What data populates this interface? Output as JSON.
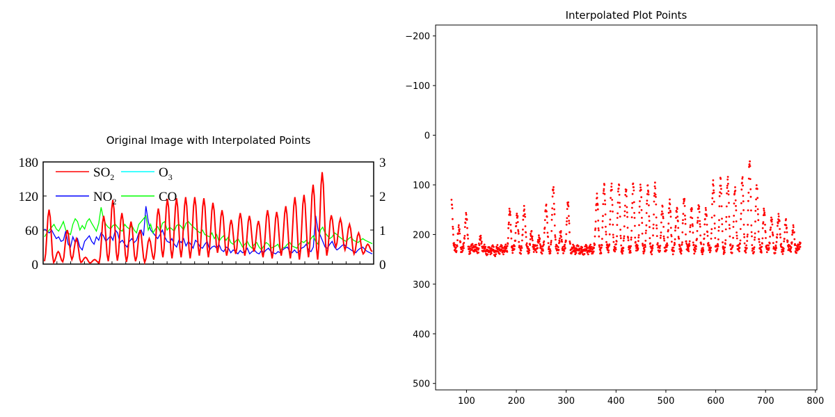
{
  "titles": {
    "left": "Original Image with Interpolated Points",
    "right": "Interpolated Plot Points"
  },
  "colors": {
    "so2": "#ff0000",
    "no2": "#0000ff",
    "o3": "#00ffff",
    "co": "#00ff00",
    "interp": "#ff0000"
  },
  "chart_data": [
    {
      "type": "line",
      "title": "Original Image with Interpolated Points",
      "left_axis": {
        "ylim": [
          0,
          180
        ],
        "ticks": [
          "0",
          "60",
          "120",
          "180"
        ]
      },
      "right_axis": {
        "ylim": [
          0,
          3
        ],
        "ticks": [
          "0",
          "1",
          "2",
          "3"
        ]
      },
      "legend": [
        "SO2",
        "O3",
        "NO2",
        "CO"
      ],
      "legend_placement": "top-left",
      "n_points": 140,
      "series": [
        {
          "name": "SO2",
          "peaks": [
            5,
            96,
            3,
            22,
            4,
            60,
            8,
            45,
            3,
            12,
            2,
            8,
            2,
            85,
            5,
            113,
            6,
            90,
            4,
            75,
            5,
            60,
            3,
            45,
            8,
            98,
            12,
            115,
            10,
            116,
            12,
            118,
            10,
            118,
            15,
            116,
            12,
            108,
            20,
            95,
            15,
            78,
            18,
            90,
            15,
            85,
            22,
            76,
            12,
            95,
            10,
            92,
            15,
            102,
            10,
            118,
            8,
            122,
            12,
            140,
            8,
            162,
            15,
            86,
            30,
            80,
            25,
            70,
            18,
            55,
            18,
            35,
            22
          ]
        },
        {
          "name": "NO2",
          "values": [
            62,
            58,
            55,
            60,
            52,
            45,
            48,
            40,
            42,
            58,
            35,
            30,
            48,
            38,
            45,
            30,
            25,
            40,
            45,
            50,
            40,
            35,
            48,
            42,
            55,
            50,
            40,
            45,
            50,
            42,
            60,
            55,
            38,
            42,
            35,
            30,
            40,
            45,
            38,
            42,
            55,
            60,
            50,
            102,
            75,
            60,
            55,
            50,
            45,
            52,
            60,
            48,
            40,
            38,
            45,
            35,
            30,
            42,
            38,
            45,
            32,
            40,
            35,
            28,
            42,
            38,
            30,
            28,
            35,
            40,
            25,
            30,
            32,
            28,
            35,
            25,
            22,
            30,
            28,
            20,
            25,
            22,
            18,
            24,
            20,
            22,
            28,
            18,
            22,
            25,
            20,
            18,
            24,
            20,
            25,
            28,
            22,
            20,
            18,
            22,
            20,
            25,
            28,
            30,
            22,
            20,
            25,
            20,
            22,
            28,
            30,
            35,
            25,
            22,
            30,
            85,
            60,
            50,
            40,
            30,
            28,
            35,
            40,
            30,
            25,
            28,
            32,
            35,
            30,
            28,
            25,
            22,
            20,
            25,
            28,
            30,
            25,
            22,
            20,
            18
          ]
        },
        {
          "name": "CO",
          "values": [
            48,
            55,
            60,
            65,
            70,
            62,
            58,
            66,
            75,
            60,
            55,
            52,
            70,
            80,
            75,
            60,
            68,
            62,
            75,
            80,
            72,
            65,
            58,
            72,
            100,
            80,
            70,
            65,
            62,
            68,
            70,
            65,
            60,
            58,
            70,
            65,
            62,
            68,
            60,
            55,
            70,
            75,
            80,
            85,
            60,
            70,
            55,
            62,
            66,
            58,
            72,
            75,
            60,
            65,
            62,
            58,
            68,
            70,
            66,
            60,
            72,
            75,
            70,
            66,
            62,
            58,
            55,
            60,
            52,
            50,
            48,
            55,
            45,
            52,
            40,
            46,
            50,
            42,
            48,
            38,
            35,
            40,
            45,
            38,
            30,
            35,
            40,
            32,
            28,
            35,
            38,
            30,
            25,
            32,
            38,
            35,
            28,
            30,
            32,
            35,
            25,
            28,
            30,
            35,
            38,
            32,
            30,
            28,
            35,
            40,
            38,
            42,
            36,
            45,
            50,
            40,
            35,
            60,
            65,
            55,
            50,
            45,
            48,
            55,
            52,
            48,
            45,
            42,
            40,
            45,
            48,
            42,
            40,
            38,
            42,
            45,
            42,
            40,
            38,
            36
          ]
        }
      ]
    },
    {
      "type": "scatter",
      "title": "Interpolated Plot Points",
      "xlim": [
        38,
        803
      ],
      "ylim": [
        513,
        -222
      ],
      "y_inverted": true,
      "xticks": [
        "100",
        "200",
        "300",
        "400",
        "500",
        "600",
        "700",
        "800"
      ],
      "yticks": [
        "−200",
        "−100",
        "0",
        "100",
        "200",
        "300",
        "400",
        "500"
      ],
      "x_range": [
        70,
        770
      ],
      "y_baseline": 230,
      "peaks_y": [
        130,
        190,
        160,
        225,
        210,
        235,
        235,
        230,
        155,
        160,
        145,
        200,
        210,
        140,
        105,
        200,
        135,
        230,
        235,
        230,
        120,
        100,
        105,
        100,
        105,
        100,
        105,
        100,
        100,
        150,
        135,
        145,
        130,
        150,
        140,
        150,
        100,
        90,
        85,
        110,
        90,
        50,
        100,
        155,
        170,
        160,
        175,
        190,
        215
      ]
    }
  ]
}
